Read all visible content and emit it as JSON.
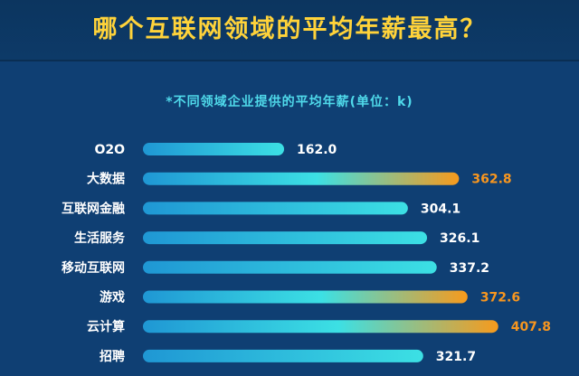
{
  "title": "哪个互联网领域的平均年薪最高？",
  "subtitle": "*不同领域企业提供的平均年薪(单位：k)",
  "colors": {
    "background": "#0f3f73",
    "title": "#ffd33a",
    "subtitle": "#4fd9ea",
    "bar_start": "#1f97d4",
    "bar_end": "#3ce0e4",
    "bar_highlight_end": "#f79a1c",
    "label": "#ffffff",
    "value": "#ffffff",
    "value_highlight": "#f7961f"
  },
  "chart_data": {
    "type": "bar",
    "orientation": "horizontal",
    "categories": [
      "O2O",
      "大数据",
      "互联网金融",
      "生活服务",
      "移动互联网",
      "游戏",
      "云计算",
      "招聘"
    ],
    "values": [
      162.0,
      362.8,
      304.1,
      326.1,
      337.2,
      372.6,
      407.8,
      321.7
    ],
    "value_labels": [
      "162.0",
      "362.8",
      "304.1",
      "326.1",
      "337.2",
      "372.6",
      "407.8",
      "321.7"
    ],
    "highlighted": [
      "大数据",
      "游戏",
      "云计算"
    ],
    "title": "哪个互联网领域的平均年薪最高？",
    "subtitle": "*不同领域企业提供的平均年薪(单位：k)",
    "xlabel": "",
    "ylabel": "",
    "grid": false,
    "legend": "none"
  }
}
